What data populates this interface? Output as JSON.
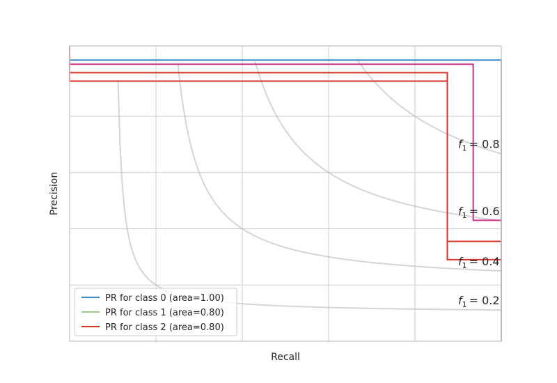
{
  "chart_data": {
    "type": "line",
    "title": "",
    "xlabel": "Recall",
    "ylabel": "Precision",
    "xlim": [
      0.0,
      1.0
    ],
    "ylim": [
      0.0,
      1.05
    ],
    "grid": true,
    "legend_position": "lower-left",
    "iso_f1": [
      {
        "f": 0.2,
        "label": "= 0.2"
      },
      {
        "f": 0.4,
        "label": "= 0.4"
      },
      {
        "f": 0.6,
        "label": "= 0.6"
      },
      {
        "f": 0.8,
        "label": "= 0.8"
      }
    ],
    "iso_label_prefix": "f",
    "iso_label_sub": "1",
    "series": [
      {
        "name": "PR for class 0 (area=1.00)",
        "color": "#3a87c8",
        "x": [
          0.0,
          1.0,
          1.0
        ],
        "y": [
          1.0,
          1.0,
          0.0
        ]
      },
      {
        "name": "PR for class 1 (area=0.80)",
        "color": "#99cc88",
        "x": [
          0.0,
          0.0,
          0.875,
          0.875,
          1.0
        ],
        "y": [
          1.05,
          0.955,
          0.955,
          0.355,
          0.355
        ]
      },
      {
        "name": "PR for class 2 (area=0.80)",
        "color": "#d93328",
        "x": [
          0.0,
          0.0,
          0.875,
          0.875,
          1.0
        ],
        "y": [
          1.05,
          0.955,
          0.955,
          0.355,
          0.355
        ]
      },
      {
        "name": "",
        "color": "#cc3388",
        "x": [
          0.0,
          0.0,
          0.935,
          0.935,
          1.0
        ],
        "y": [
          1.05,
          0.985,
          0.985,
          0.43,
          0.43
        ]
      },
      {
        "name": "",
        "color": "#d93328",
        "x": [
          0.0,
          0.0,
          0.875,
          0.875,
          1.0
        ],
        "y": [
          1.05,
          0.925,
          0.925,
          0.29,
          0.29
        ]
      }
    ]
  }
}
